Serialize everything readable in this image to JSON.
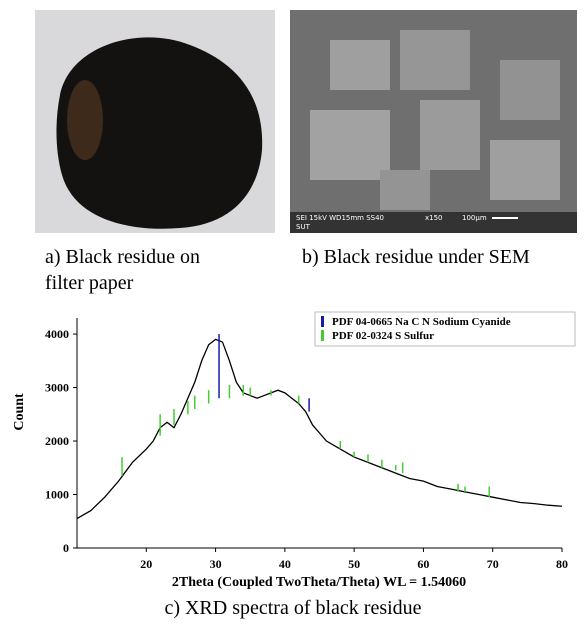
{
  "figure": {
    "caption_a": [
      "a) Black residue on",
      "filter paper"
    ],
    "caption_b": "b) Black residue under SEM",
    "sem_overlay": [
      "SEI 15kV WD15mm SS40",
      "x150",
      "100μm",
      "SUT"
    ],
    "caption_c": "c) XRD spectra of black residue"
  },
  "chart_data": {
    "type": "line",
    "x_label": "2Theta (Coupled TwoTheta/Theta) WL = 1.54060",
    "y_label": "Count",
    "xlim": [
      10,
      80
    ],
    "ylim": [
      0,
      4300
    ],
    "xticks": [
      20,
      30,
      40,
      50,
      60,
      70,
      80
    ],
    "yticks": [
      0,
      1000,
      2000,
      3000,
      4000
    ],
    "series": [
      {
        "type": "line",
        "color": "#000000",
        "x": [
          10,
          12,
          14,
          16,
          18,
          20,
          21,
          22,
          23,
          24,
          25,
          26,
          27,
          28,
          29,
          30,
          31,
          32,
          33,
          34,
          35,
          36,
          37,
          38,
          39,
          40,
          41,
          42,
          43,
          44,
          45,
          46,
          48,
          50,
          52,
          54,
          56,
          58,
          60,
          62,
          64,
          66,
          68,
          70,
          72,
          74,
          76,
          78,
          80
        ],
        "values": [
          550,
          700,
          950,
          1250,
          1600,
          1850,
          2000,
          2250,
          2350,
          2250,
          2500,
          2800,
          3100,
          3500,
          3800,
          3900,
          3850,
          3500,
          3100,
          2900,
          2850,
          2800,
          2850,
          2900,
          2950,
          2900,
          2800,
          2700,
          2550,
          2300,
          2150,
          2000,
          1850,
          1700,
          1600,
          1500,
          1400,
          1300,
          1250,
          1150,
          1100,
          1050,
          1000,
          950,
          900,
          850,
          830,
          800,
          780
        ]
      },
      {
        "type": "stick",
        "name": "PDF 04-0665 Na C N Sodium Cyanide",
        "color": "#1a1aa8",
        "x": [
          30.5,
          43.5
        ],
        "values": [
          4000,
          2800
        ],
        "base": [
          2800,
          2550
        ]
      },
      {
        "type": "stick",
        "name": "PDF 02-0324 S Sulfur",
        "color": "#44cc33",
        "x": [
          16.5,
          22,
          24,
          26,
          27,
          29,
          32,
          34,
          35,
          38,
          42,
          48,
          50,
          52,
          54,
          56,
          57,
          65,
          66,
          69.5
        ],
        "values": [
          1700,
          2500,
          2600,
          2750,
          2850,
          2950,
          3050,
          3050,
          3000,
          2950,
          2850,
          2000,
          1800,
          1750,
          1650,
          1550,
          1600,
          1200,
          1150,
          1150
        ],
        "base": [
          1350,
          2100,
          2300,
          2500,
          2600,
          2700,
          2800,
          2850,
          2850,
          2850,
          2700,
          1850,
          1700,
          1600,
          1500,
          1450,
          1400,
          1050,
          1050,
          950
        ]
      }
    ]
  }
}
